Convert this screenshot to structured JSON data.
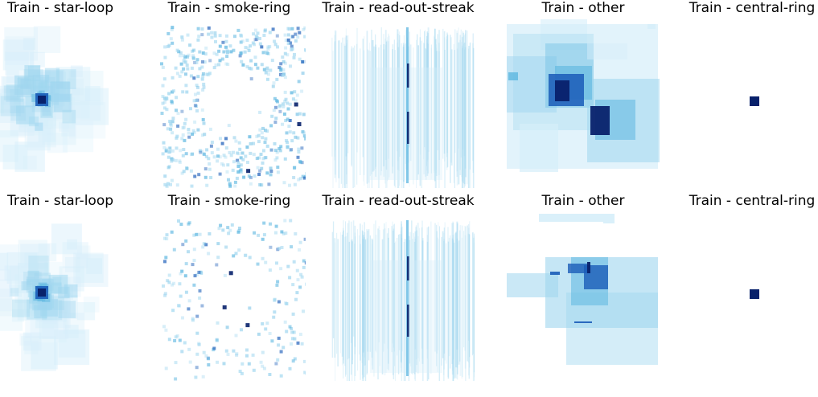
{
  "chart_data": {
    "type": "heatmap",
    "colormap": [
      "#ffffff",
      "#d6eefa",
      "#9fd6ef",
      "#5cb6e0",
      "#1a5cb8",
      "#08216b"
    ],
    "rows": [
      [
        {
          "title": "Train - star-loop",
          "pattern": "blob",
          "seed": 11
        },
        {
          "title": "Train - smoke-ring",
          "pattern": "ring_dense",
          "seed": 23
        },
        {
          "title": "Train - read-out-streak",
          "pattern": "streak_dense",
          "seed": 37
        },
        {
          "title": "Train - other",
          "pattern": "boxes_a",
          "seed": 41
        },
        {
          "title": "Train - central-ring",
          "pattern": "dot",
          "seed": 53
        }
      ],
      [
        {
          "title": "Train - star-loop",
          "pattern": "blob",
          "seed": 67
        },
        {
          "title": "Train - smoke-ring",
          "pattern": "ring_sparse",
          "seed": 79
        },
        {
          "title": "Train - read-out-streak",
          "pattern": "streak_dense",
          "seed": 83
        },
        {
          "title": "Train - other",
          "pattern": "boxes_b",
          "seed": 97
        },
        {
          "title": "Train - central-ring",
          "pattern": "dot",
          "seed": 101
        }
      ]
    ]
  }
}
